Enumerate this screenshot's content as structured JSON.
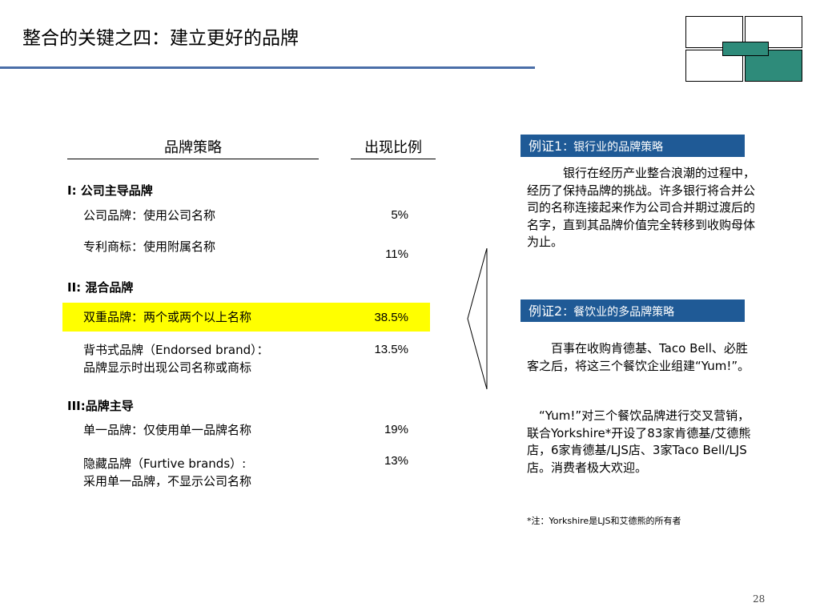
{
  "slide": {
    "title": "整合的关键之四：建立更好的品牌",
    "page_number": "28"
  },
  "table": {
    "header_strategy": "品牌策略",
    "header_ratio": "出现比例",
    "section1": "I: 公司主导品牌",
    "row1_text": "公司品牌：使用公司名称",
    "row1_pct": "5%",
    "row2_text": "专利商标：使用附属名称",
    "row2_pct": "11%",
    "section2": "II: 混合品牌",
    "row3_text": "双重品牌：两个或两个以上名称",
    "row3_pct": "38.5%",
    "row4_text": "背书式品牌（Endorsed brand）：\n品牌显示时出现公司名称或商标",
    "row4_pct": "13.5%",
    "section3": "III:品牌主导",
    "row5_text": "单一品牌：仅使用单一品牌名称",
    "row5_pct": "19%",
    "row6_text": "隐藏品牌（Furtive brands）:\n采用单一品牌，不显示公司名称",
    "row6_pct": "13%"
  },
  "example1": {
    "label": "例证1",
    "subtitle": "：银行业的品牌策略",
    "body": "银行在经历产业整合浪潮的过程中，经历了保持品牌的挑战。许多银行将合并公司的名称连接起来作为公司合并期过渡后的名字，直到其品牌价值完全转移到收购母体为止。"
  },
  "example2": {
    "label": "例证2",
    "subtitle": "：餐饮业的多品牌策略",
    "para1": "百事在收购肯德基、Taco Bell、必胜客之后，将这三个餐饮企业组建“Yum!”。",
    "para2": "“Yum!”对三个餐饮品牌进行交叉营销，联合Yorkshire*开设了83家肯德基/艾德熊店，6家肯德基/LJS店、3家Taco Bell/LJS店。消费者极大欢迎。",
    "note": "*注：Yorkshire是LJS和艾德熊的所有者"
  },
  "colors": {
    "accent_blue": "#1f5a96",
    "title_rule": "#4a6ea8",
    "highlight": "#ffff00",
    "logo_green": "#2e8b7a"
  }
}
